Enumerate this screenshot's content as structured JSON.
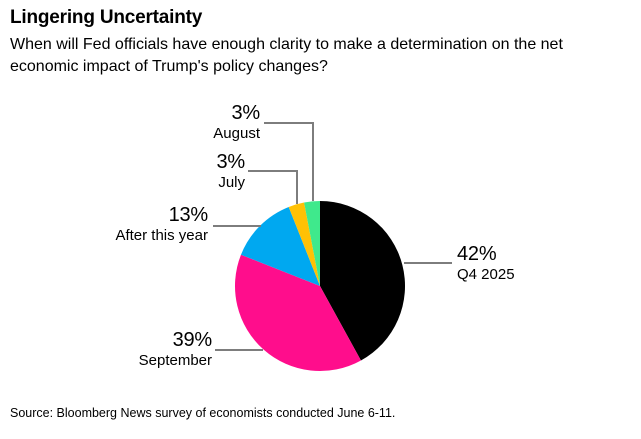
{
  "header": {
    "title": "Lingering Uncertainty",
    "subtitle_line1": "When will Fed officials have enough clarity to make a determination on the net",
    "subtitle_line2": "economic impact of Trump's policy changes?"
  },
  "chart_data": {
    "type": "pie",
    "title": "Lingering Uncertainty",
    "question": "When will Fed officials have enough clarity to make a determination on the net economic impact of Trump's policy changes?",
    "unit": "%",
    "legend": "none",
    "label_style": "callouts-with-leader-lines",
    "start_angle_deg": 0,
    "direction": "clockwise",
    "slices": [
      {
        "label": "Q4 2025",
        "value": 42,
        "pct_label": "42%",
        "color": "#000000"
      },
      {
        "label": "September",
        "value": 39,
        "pct_label": "39%",
        "color": "#ff0d8c"
      },
      {
        "label": "After this year",
        "value": 13,
        "pct_label": "13%",
        "color": "#00a8f0"
      },
      {
        "label": "July",
        "value": 3,
        "pct_label": "3%",
        "color": "#ffc105"
      },
      {
        "label": "August",
        "value": 3,
        "pct_label": "3%",
        "color": "#3fe98c"
      }
    ],
    "colors": {
      "leader_line": "#7d7d7d",
      "text": "#000000",
      "background": "#ffffff"
    }
  },
  "footer": {
    "source": "Source: Bloomberg News survey of economists conducted June 6-11."
  }
}
